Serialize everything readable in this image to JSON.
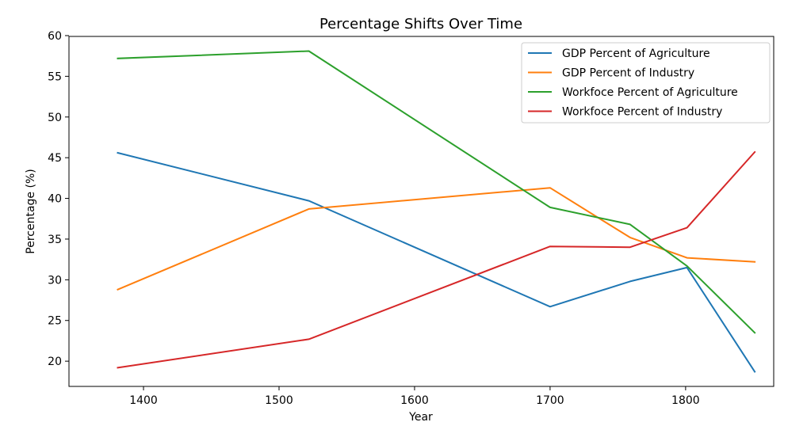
{
  "chart_data": {
    "type": "line",
    "title": "Percentage Shifts Over Time",
    "xlabel": "Year",
    "ylabel": "Percentage (%)",
    "xlim": [
      1345,
      1865
    ],
    "ylim": [
      16.9,
      59.9
    ],
    "xticks": [
      1400,
      1500,
      1600,
      1700,
      1800
    ],
    "yticks": [
      20,
      25,
      30,
      35,
      40,
      45,
      50,
      55,
      60
    ],
    "grid": false,
    "legend_position": "top-right",
    "x": [
      1381,
      1522,
      1700,
      1759,
      1801,
      1851
    ],
    "series": [
      {
        "name": "GDP Percent of Agriculture",
        "color": "#1f77b4",
        "values": [
          45.6,
          39.7,
          26.7,
          29.8,
          31.5,
          18.7
        ]
      },
      {
        "name": "GDP Percent of Industry",
        "color": "#ff7f0e",
        "values": [
          28.8,
          38.7,
          41.3,
          35.2,
          32.7,
          32.2
        ]
      },
      {
        "name": "Workfoce Percent of Agriculture",
        "color": "#2ca02c",
        "values": [
          57.2,
          58.1,
          38.9,
          36.8,
          31.7,
          23.5
        ]
      },
      {
        "name": "Workfoce Percent of Industry",
        "color": "#d62728",
        "values": [
          19.2,
          22.7,
          34.1,
          34.0,
          36.4,
          45.7
        ]
      }
    ]
  }
}
